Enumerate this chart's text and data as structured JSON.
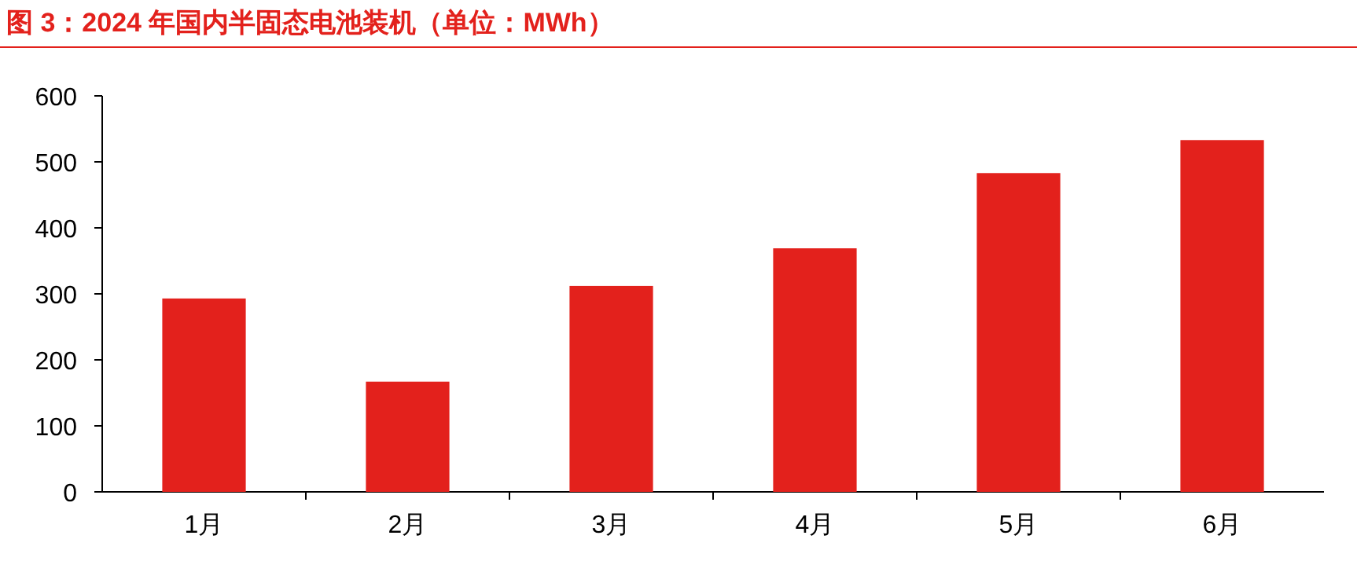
{
  "chart_data": {
    "type": "bar",
    "title": "图 3：2024 年国内半固态电池装机（单位：MWh）",
    "categories": [
      "1月",
      "2月",
      "3月",
      "4月",
      "5月",
      "6月"
    ],
    "values": [
      293,
      167,
      312,
      369,
      483,
      533
    ],
    "color": "#e3211c",
    "ylim": [
      0,
      600
    ],
    "yticks": [
      0,
      100,
      200,
      300,
      400,
      500,
      600
    ]
  }
}
